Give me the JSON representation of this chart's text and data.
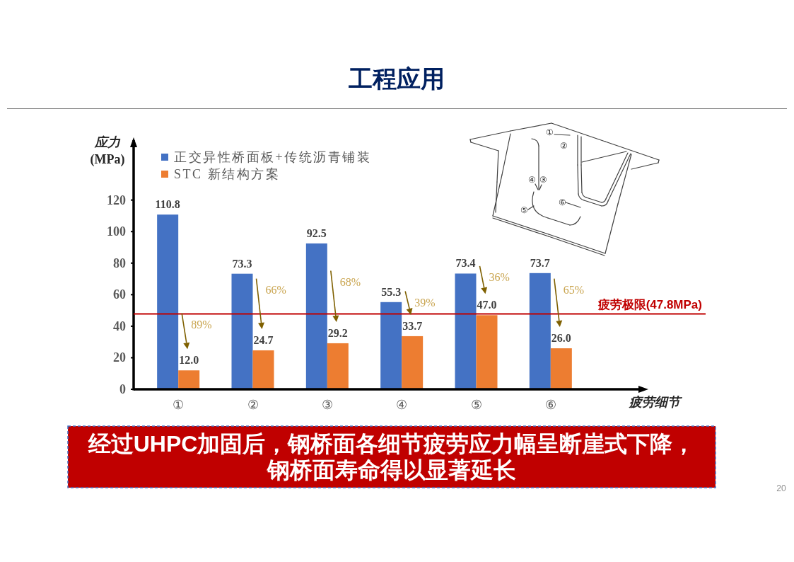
{
  "chart_data": {
    "type": "bar",
    "title": "工程应用",
    "xlabel": "疲劳细节",
    "ylabel": "应力\n(MPa)",
    "categories": [
      "①",
      "②",
      "③",
      "④",
      "⑤",
      "⑥"
    ],
    "series": [
      {
        "name": "正交异性桥面板+传统沥青铺装",
        "color": "#4472c4",
        "values": [
          110.8,
          73.3,
          92.5,
          55.3,
          73.4,
          73.7
        ],
        "value_labels": [
          "110.8",
          "73.3",
          "92.5",
          "55.3",
          "73.4",
          "73.7"
        ]
      },
      {
        "name": "STC 新结构方案",
        "color": "#ed7d31",
        "values": [
          12.0,
          24.7,
          29.2,
          33.7,
          47.0,
          26.0
        ],
        "value_labels": [
          "12.0",
          "24.7",
          "29.2",
          "33.7",
          "47.0",
          "26.0"
        ]
      }
    ],
    "ylim": [
      0,
      158
    ],
    "yticks": [
      0,
      20,
      40,
      60,
      80,
      100,
      120
    ],
    "legend": "top left",
    "ref_lines": [
      {
        "axis": "y",
        "value": 47.8,
        "label": "疲劳极限(47.8MPa)",
        "color": "#c00000"
      }
    ],
    "annotations": [
      {
        "text": "89%",
        "x": "①",
        "y": 41
      },
      {
        "text": "66%",
        "x": "②",
        "y": 63
      },
      {
        "text": "68%",
        "x": "③",
        "y": 68
      },
      {
        "text": "39%",
        "x": "④",
        "y": 55
      },
      {
        "text": "36%",
        "x": "⑤",
        "y": 71
      },
      {
        "text": "65%",
        "x": "⑥",
        "y": 63
      },
      "经过UHPC加固后，钢桥面各细节疲劳应力幅呈断崖式下降，",
      "钢桥面寿命得以显著延长",
      "20"
    ]
  }
}
